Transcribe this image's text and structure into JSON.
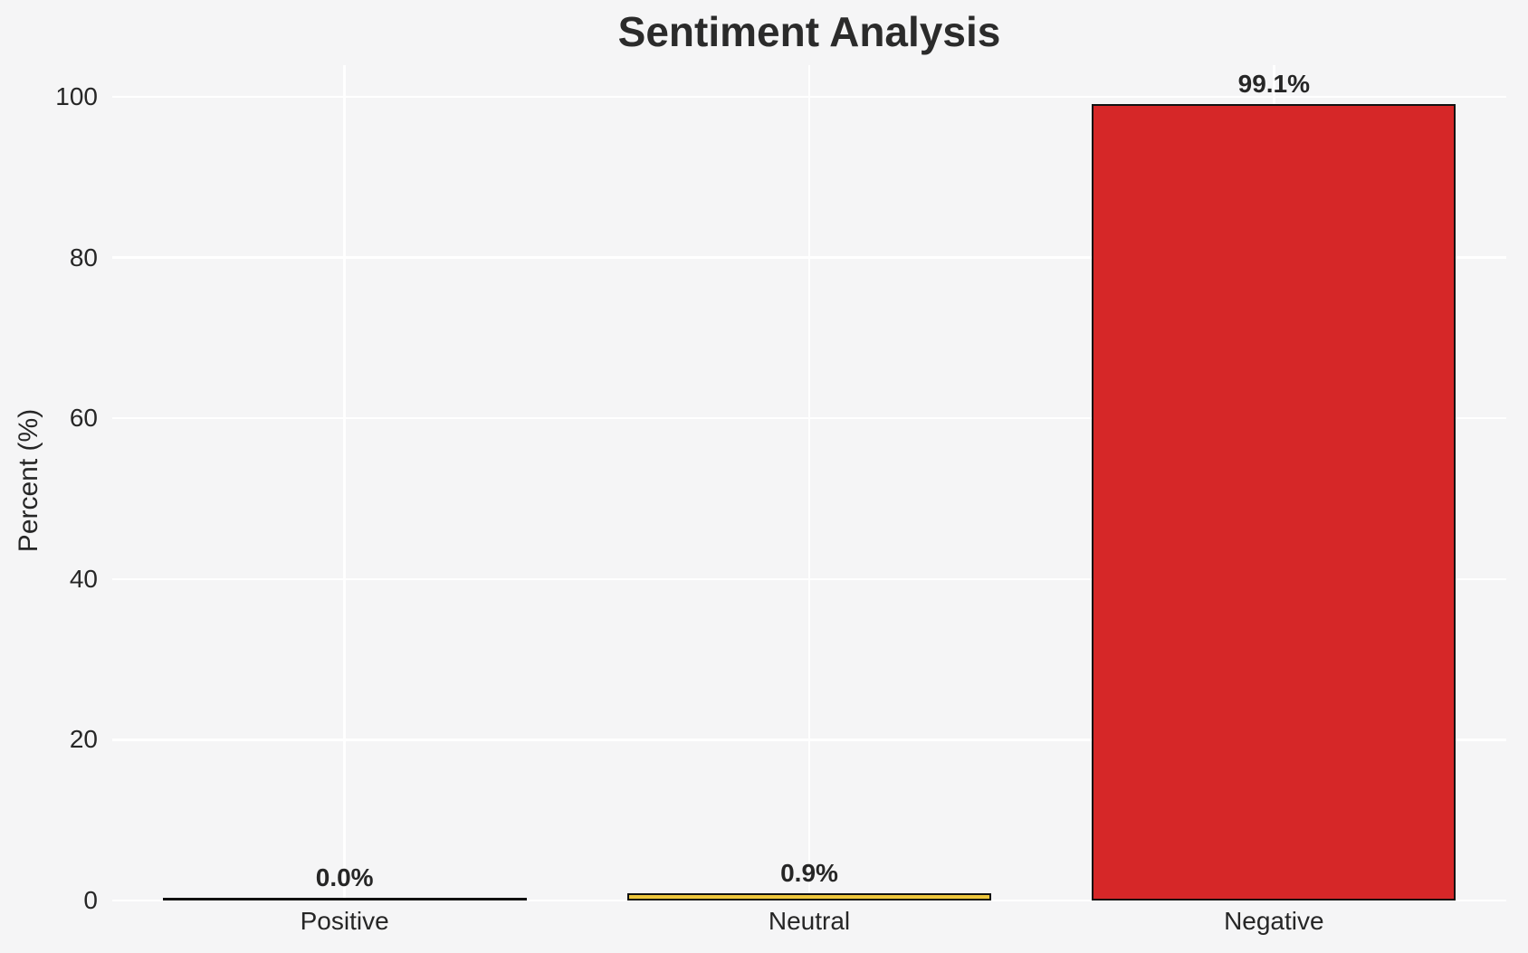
{
  "meta": {
    "background_color": "#f5f5f6",
    "grid_color": "#ffffff",
    "bar_edge_color": "#111111",
    "text_color": "#262626",
    "title_color": "#2b2b2b"
  },
  "chart_data": {
    "type": "bar",
    "title": "Sentiment Analysis",
    "xlabel": "",
    "ylabel": "Percent (%)",
    "categories": [
      "Positive",
      "Neutral",
      "Negative"
    ],
    "values": [
      0.0,
      0.9,
      99.1
    ],
    "value_labels": [
      "0.0%",
      "0.9%",
      "99.1%"
    ],
    "bar_colors": [
      null,
      "#eec63c",
      "#d62728"
    ],
    "yticks": [
      0,
      20,
      40,
      60,
      80,
      100
    ],
    "ytick_labels": [
      "0",
      "20",
      "40",
      "60",
      "80",
      "100"
    ],
    "ylim": [
      0,
      104
    ],
    "grid": "both",
    "grid_lines_on": true,
    "legend": "none"
  }
}
